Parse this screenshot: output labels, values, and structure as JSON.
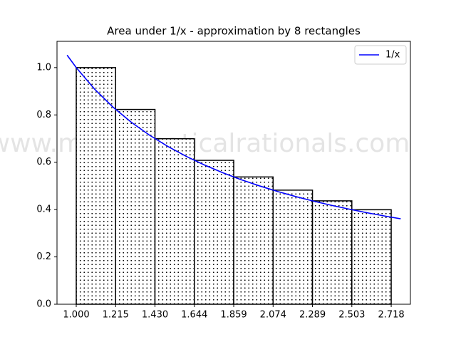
{
  "chart_data": {
    "type": "histogram",
    "title": "Area under 1/x - approximation by 8 rectangles",
    "watermark": "www.mathematicalrationals.com",
    "bins": [
      1.0,
      1.214785,
      1.42957,
      1.644355,
      1.85914,
      2.073925,
      2.28871,
      2.503495,
      2.71828
    ],
    "values": [
      1.0,
      0.8232,
      0.6995,
      0.6081,
      0.5379,
      0.4822,
      0.4369,
      0.3994
    ],
    "bar_fill": "#ffffff",
    "bar_edge": "#000000",
    "hatch": "dots",
    "series": [
      {
        "name": "1/x",
        "color": "#0000ff",
        "x": [
          0.95,
          1.0,
          1.1,
          1.2,
          1.3,
          1.4,
          1.5,
          1.6,
          1.7,
          1.8,
          1.9,
          2.0,
          2.1,
          2.2,
          2.3,
          2.4,
          2.5,
          2.6,
          2.7,
          2.77
        ],
        "values": [
          1.0526,
          1.0,
          0.9091,
          0.8333,
          0.7692,
          0.7143,
          0.6667,
          0.625,
          0.5882,
          0.5556,
          0.5263,
          0.5,
          0.4762,
          0.4545,
          0.4348,
          0.4167,
          0.4,
          0.3846,
          0.3704,
          0.361
        ]
      }
    ],
    "xlim": [
      0.895,
      2.823
    ],
    "ylim": [
      0,
      1.111
    ],
    "xticks": [
      {
        "value": 1.0,
        "label": "1.000"
      },
      {
        "value": 1.214785,
        "label": "1.215"
      },
      {
        "value": 1.42957,
        "label": "1.430"
      },
      {
        "value": 1.644355,
        "label": "1.644"
      },
      {
        "value": 1.85914,
        "label": "1.859"
      },
      {
        "value": 2.073925,
        "label": "2.074"
      },
      {
        "value": 2.28871,
        "label": "2.289"
      },
      {
        "value": 2.503495,
        "label": "2.503"
      },
      {
        "value": 2.71828,
        "label": "2.718"
      }
    ],
    "yticks": [
      {
        "value": 0,
        "label": "0.0"
      },
      0.2,
      0.4,
      0.6,
      0.8,
      {
        "value": 1,
        "label": "1.0"
      }
    ],
    "legend": "upper right"
  }
}
